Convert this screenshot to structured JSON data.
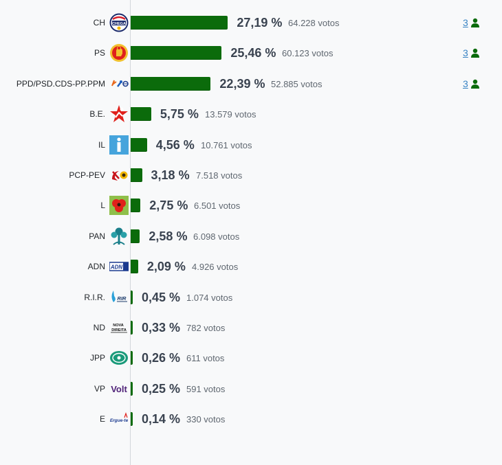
{
  "chart_data": {
    "type": "bar",
    "orientation": "horizontal",
    "xlim": [
      0,
      100
    ],
    "grid": false,
    "legend": "none",
    "bar_color": "#0b6b0b",
    "rows": [
      {
        "party": "CH",
        "value": 27.19,
        "pct_label": "27,19 %",
        "votes_label": "64.228 votos",
        "seats": "3",
        "icon": "chega-logo"
      },
      {
        "party": "PS",
        "value": 25.46,
        "pct_label": "25,46 %",
        "votes_label": "60.123 votos",
        "seats": "3",
        "icon": "ps-fist-rose-logo"
      },
      {
        "party": "PPD/PSD.CDS-PP.PPM",
        "value": 22.39,
        "pct_label": "22,39 %",
        "votes_label": "52.885 votos",
        "seats": "3",
        "icon": "ad-coalition-logo"
      },
      {
        "party": "B.E.",
        "value": 5.75,
        "pct_label": "5,75 %",
        "votes_label": "13.579 votos",
        "icon": "be-star-logo"
      },
      {
        "party": "IL",
        "value": 4.56,
        "pct_label": "4,56 %",
        "votes_label": "10.761 votos",
        "icon": "il-logo"
      },
      {
        "party": "PCP-PEV",
        "value": 3.18,
        "pct_label": "3,18 %",
        "votes_label": "7.518 votos",
        "icon": "cdu-hammer-sickle-logo"
      },
      {
        "party": "L",
        "value": 2.75,
        "pct_label": "2,75 %",
        "votes_label": "6.501 votos",
        "icon": "livre-poppy-logo"
      },
      {
        "party": "PAN",
        "value": 2.58,
        "pct_label": "2,58 %",
        "votes_label": "6.098 votos",
        "icon": "pan-tree-logo"
      },
      {
        "party": "ADN",
        "value": 2.09,
        "pct_label": "2,09 %",
        "votes_label": "4.926 votos",
        "icon": "adn-logo"
      },
      {
        "party": "R.I.R.",
        "value": 0.45,
        "pct_label": "0,45 %",
        "votes_label": "1.074 votos",
        "icon": "rir-logo"
      },
      {
        "party": "ND",
        "value": 0.33,
        "pct_label": "0,33 %",
        "votes_label": "782 votos",
        "icon": "nova-direita-logo"
      },
      {
        "party": "JPP",
        "value": 0.26,
        "pct_label": "0,26 %",
        "votes_label": "611 votos",
        "icon": "jpp-logo"
      },
      {
        "party": "VP",
        "value": 0.25,
        "pct_label": "0,25 %",
        "votes_label": "591 votos",
        "icon": "volt-logo"
      },
      {
        "party": "E",
        "value": 0.14,
        "pct_label": "0,14 %",
        "votes_label": "330 votos",
        "icon": "ergue-te-logo"
      }
    ],
    "logo_text": {
      "chega": "CHEGA",
      "il": "i",
      "adn": "ADN",
      "rir": "RIR",
      "nd_top": "NOVA",
      "nd_bottom": "DIREITA",
      "volt": "Volt",
      "ergue_te": "Ergue-te"
    },
    "colors": {
      "bar": "#0b6b0b",
      "seat_link": "#3a84c4",
      "seat_icon": "#0b6b0b",
      "percent_text": "#3a4350"
    }
  }
}
